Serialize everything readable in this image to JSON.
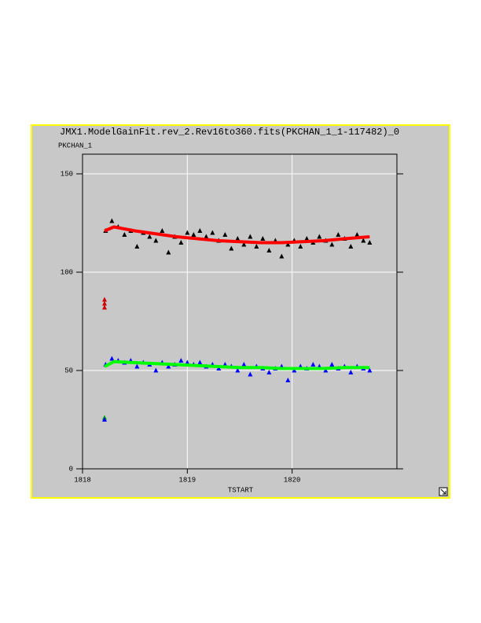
{
  "chart_data": {
    "type": "scatter",
    "title": "JMX1.ModelGainFit.rev_2.Rev16to360.fits(PKCHAN_1_1-117482)_0",
    "y_label": "PKCHAN_1",
    "x_label": "TSTART",
    "xlim": [
      1818,
      1821
    ],
    "xticks": [
      1818,
      1819,
      1820
    ],
    "ylim": [
      0,
      160
    ],
    "yticks": [
      0,
      50,
      100,
      150
    ],
    "grid": true,
    "series": [
      {
        "mode": "markers",
        "color": "#000000",
        "x": [
          1818.22,
          1818.28,
          1818.34,
          1818.4,
          1818.46,
          1818.52,
          1818.58,
          1818.64,
          1818.7,
          1818.76,
          1818.82,
          1818.88,
          1818.94,
          1819.0,
          1819.06,
          1819.12,
          1819.18,
          1819.24,
          1819.3,
          1819.36,
          1819.42,
          1819.48,
          1819.54,
          1819.6,
          1819.66,
          1819.72,
          1819.78,
          1819.84,
          1819.9,
          1819.96,
          1820.02,
          1820.08,
          1820.14,
          1820.2,
          1820.26,
          1820.32,
          1820.38,
          1820.44,
          1820.5,
          1820.56,
          1820.62,
          1820.68,
          1820.74
        ],
        "values": [
          121,
          126,
          123,
          119,
          121,
          113,
          120,
          118,
          116,
          121,
          110,
          118,
          115,
          120,
          119,
          121,
          118,
          120,
          116,
          119,
          112,
          117,
          114,
          118,
          113,
          117,
          111,
          116,
          108,
          114,
          116,
          113,
          117,
          115,
          118,
          116,
          114,
          119,
          117,
          113,
          119,
          116,
          115
        ]
      },
      {
        "mode": "markers",
        "color": "#0000ff",
        "x": [
          1818.22,
          1818.28,
          1818.34,
          1818.4,
          1818.46,
          1818.52,
          1818.58,
          1818.64,
          1818.7,
          1818.76,
          1818.82,
          1818.88,
          1818.94,
          1819.0,
          1819.06,
          1819.12,
          1819.18,
          1819.24,
          1819.3,
          1819.36,
          1819.42,
          1819.48,
          1819.54,
          1819.6,
          1819.66,
          1819.72,
          1819.78,
          1819.84,
          1819.9,
          1819.96,
          1820.02,
          1820.08,
          1820.14,
          1820.2,
          1820.26,
          1820.32,
          1820.38,
          1820.44,
          1820.5,
          1820.56,
          1820.62,
          1820.68,
          1820.74
        ],
        "values": [
          53,
          56,
          55,
          54,
          55,
          52,
          54,
          53,
          50,
          54,
          52,
          53,
          55,
          54,
          53,
          54,
          52,
          53,
          51,
          53,
          52,
          50,
          53,
          48,
          52,
          51,
          49,
          51,
          52,
          45,
          50,
          52,
          51,
          53,
          52,
          50,
          53,
          51,
          52,
          49,
          52,
          51,
          50
        ]
      },
      {
        "mode": "markers",
        "color": "#cc0000",
        "x": [
          1818.21,
          1818.21,
          1818.21
        ],
        "values": [
          86,
          84,
          82
        ]
      },
      {
        "mode": "markers",
        "color": "#00aa00",
        "x": [
          1818.21
        ],
        "values": [
          26
        ]
      },
      {
        "mode": "markers",
        "color": "#0000ff",
        "x": [
          1818.21
        ],
        "values": [
          25
        ]
      },
      {
        "mode": "lines",
        "color": "#ff0000",
        "x": [
          1818.21,
          1818.3,
          1818.5,
          1818.7,
          1818.9,
          1819.1,
          1819.3,
          1819.5,
          1819.7,
          1819.9,
          1820.1,
          1820.3,
          1820.5,
          1820.74
        ],
        "values": [
          121,
          123,
          121,
          119.5,
          118,
          117,
          116,
          115.5,
          115,
          115,
          115.5,
          116,
          117,
          118
        ]
      },
      {
        "mode": "lines",
        "color": "#00ff00",
        "x": [
          1818.21,
          1818.3,
          1818.5,
          1818.7,
          1818.9,
          1819.1,
          1819.3,
          1819.5,
          1819.7,
          1819.9,
          1820.1,
          1820.3,
          1820.5,
          1820.74
        ],
        "values": [
          52,
          54.5,
          54,
          53.5,
          53,
          52.5,
          52,
          51.5,
          51.5,
          51,
          51,
          51,
          51.5,
          51.5
        ]
      }
    ]
  }
}
